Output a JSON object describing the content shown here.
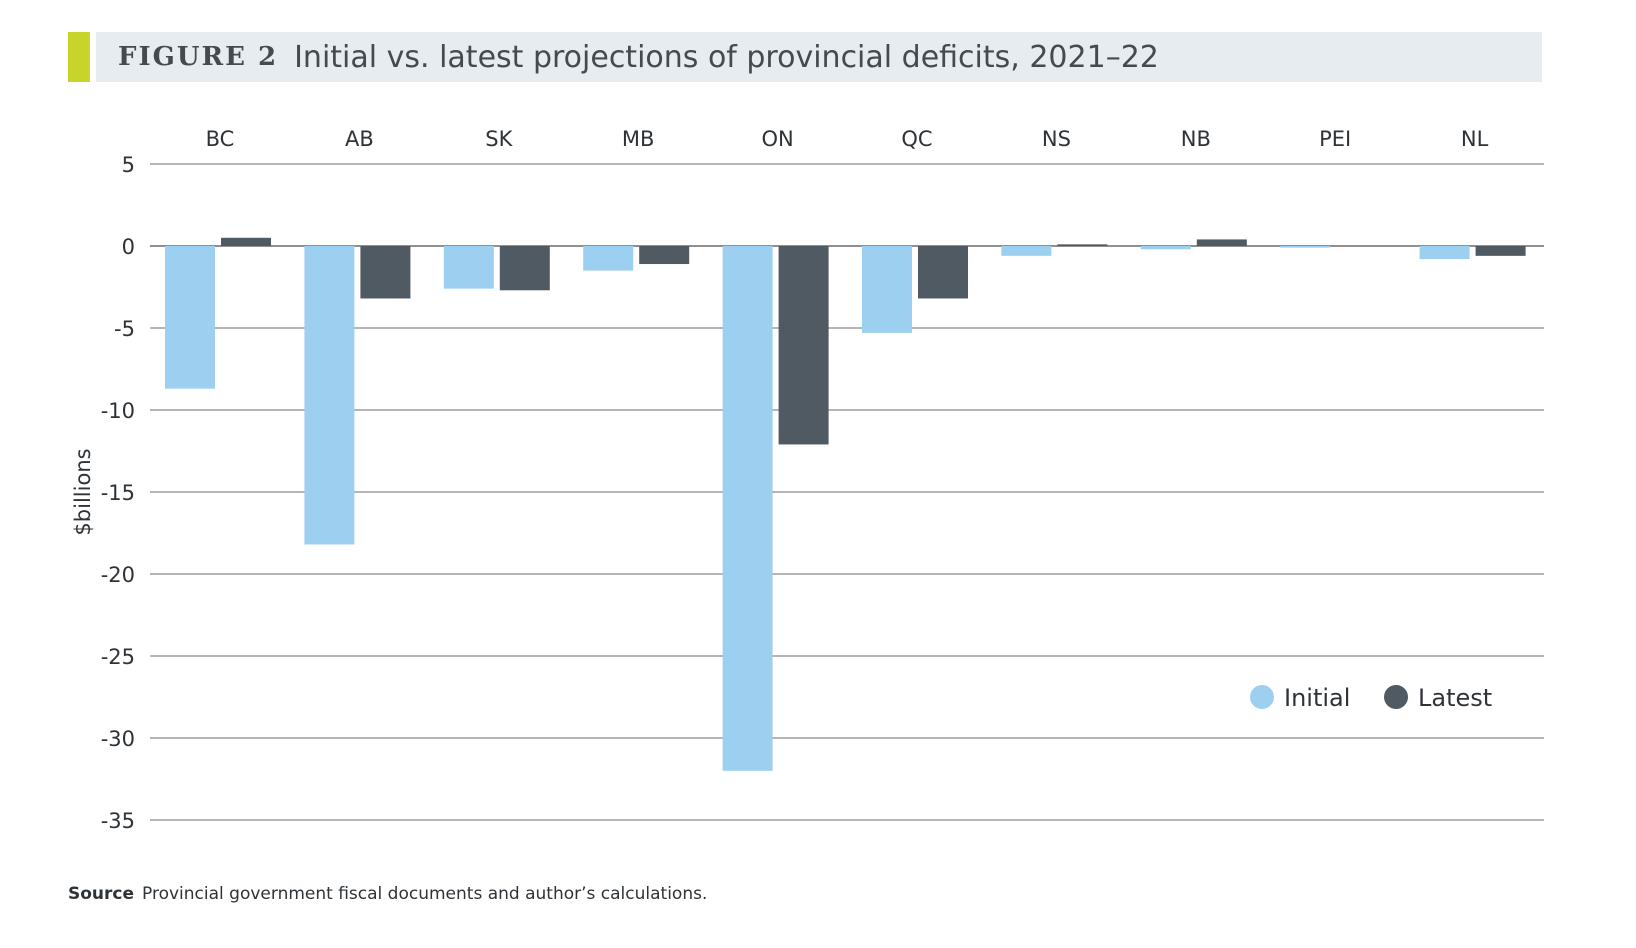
{
  "figure": {
    "label": "FIGURE 2",
    "title": "Initial vs. latest projections of provincial deficits, 2021–22"
  },
  "source": {
    "label": "Source",
    "text": "Provincial government fiscal documents and author’s calculations."
  },
  "colors": {
    "accent": "#c8d42b",
    "title_bg": "#e6ecef",
    "initial": "#9dd0f0",
    "latest": "#4f5a62",
    "gridline": "#6b6b6b"
  },
  "chart_data": {
    "type": "bar",
    "categories": [
      "BC",
      "AB",
      "SK",
      "MB",
      "ON",
      "QC",
      "NS",
      "NB",
      "PEI",
      "NL"
    ],
    "series": [
      {
        "name": "Initial",
        "values": [
          -8.7,
          -18.2,
          -2.6,
          -1.5,
          -32.0,
          -5.3,
          -0.6,
          -0.2,
          -0.1,
          -0.8
        ]
      },
      {
        "name": "Latest",
        "values": [
          0.5,
          -3.2,
          -2.7,
          -1.1,
          -12.1,
          -3.2,
          0.1,
          0.4,
          0.0,
          -0.6
        ]
      }
    ],
    "ylabel": "$billions",
    "ylim": [
      -35,
      5
    ],
    "yticks": [
      5,
      0,
      -5,
      -10,
      -15,
      -20,
      -25,
      -30,
      -35
    ],
    "ytick_labels": [
      "5",
      "0",
      "-5",
      "-10",
      "-15",
      "-20",
      "-25",
      "-30",
      "-35"
    ],
    "category_labels_position": "top",
    "grid": true,
    "legend_position": "bottom-right"
  }
}
